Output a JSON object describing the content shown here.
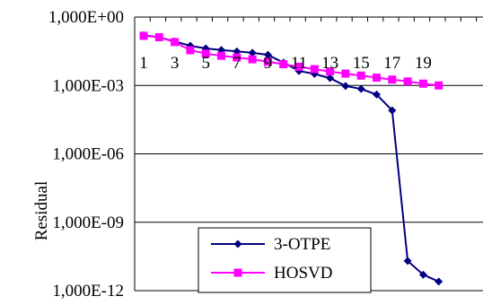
{
  "chart_data": {
    "type": "line",
    "xlabel": "",
    "ylabel": "Residual",
    "y_scale": "log",
    "ylim": [
      1e-12,
      1
    ],
    "y_ticks": [
      {
        "value": 1,
        "label": "1,000E+00"
      },
      {
        "value": 0.001,
        "label": "1,000E-03"
      },
      {
        "value": 1e-06,
        "label": "1,000E-06"
      },
      {
        "value": 1e-09,
        "label": "1,000E-09"
      },
      {
        "value": 1e-12,
        "label": "1,000E-12"
      }
    ],
    "x": [
      1,
      2,
      3,
      4,
      5,
      6,
      7,
      8,
      9,
      10,
      11,
      12,
      13,
      14,
      15,
      16,
      17,
      18,
      19,
      20
    ],
    "x_tick_labels": [
      "1",
      "3",
      "5",
      "7",
      "9",
      "11",
      "13",
      "15",
      "17",
      "19"
    ],
    "grid": "horizontal",
    "legend_position": "bottom-center",
    "series": [
      {
        "name": "3-OTPE",
        "color": "#000080",
        "marker": "diamond",
        "values": [
          0.16,
          0.13,
          0.085,
          0.055,
          0.042,
          0.036,
          0.031,
          0.027,
          0.022,
          0.01,
          0.0043,
          0.0032,
          0.0021,
          0.00095,
          0.0007,
          0.0004,
          8e-05,
          2e-11,
          5e-12,
          2.5e-12
        ]
      },
      {
        "name": "HOSVD",
        "color": "#ff00ff",
        "marker": "square",
        "values": [
          0.15,
          0.13,
          0.08,
          0.035,
          0.025,
          0.02,
          0.017,
          0.014,
          0.011,
          0.0085,
          0.0066,
          0.0052,
          0.0041,
          0.0033,
          0.0027,
          0.0022,
          0.0018,
          0.0015,
          0.0012,
          0.001
        ]
      }
    ]
  }
}
